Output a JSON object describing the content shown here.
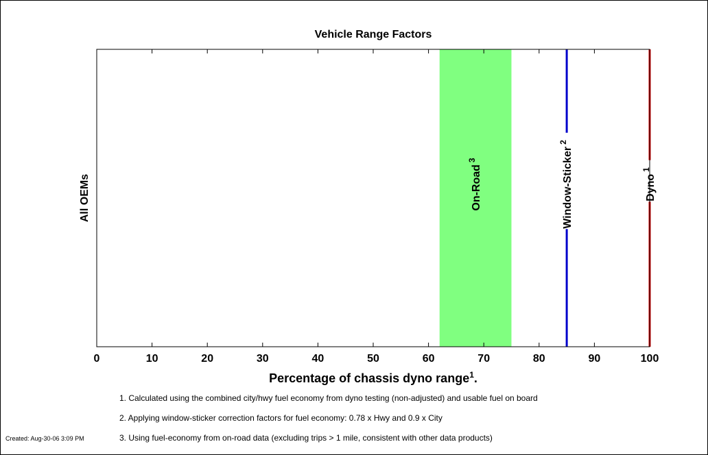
{
  "chart_data": {
    "type": "bar",
    "title": "Vehicle Range Factors",
    "xlabel": "Percentage of chassis dyno range",
    "xlabel_superscript": "1",
    "xlabel_suffix": ".",
    "ylabel": "All OEMs",
    "xlim": [
      0,
      100
    ],
    "xticks": [
      0,
      10,
      20,
      30,
      40,
      50,
      60,
      70,
      80,
      90,
      100
    ],
    "grid": false,
    "bands": [
      {
        "name": "On-Road",
        "superscript": "3",
        "x_start": 62,
        "x_end": 75,
        "color": "#80ff80"
      }
    ],
    "lines": [
      {
        "name": "Window-Sticker",
        "superscript": "2",
        "x": 85,
        "color": "#0000cc"
      },
      {
        "name": "Dyno",
        "superscript": "1",
        "x": 100,
        "color": "#dd0000"
      }
    ]
  },
  "footnotes": [
    "1. Calculated using the combined city/hwy fuel economy from dyno testing (non-adjusted) and usable fuel on board",
    "2. Applying window-sticker correction factors for fuel economy: 0.78 x Hwy and 0.9 x City",
    "3. Using fuel-economy from on-road data (excluding trips > 1 mile, consistent with other data products)"
  ],
  "created": "Created: Aug-30-06  3:09 PM"
}
